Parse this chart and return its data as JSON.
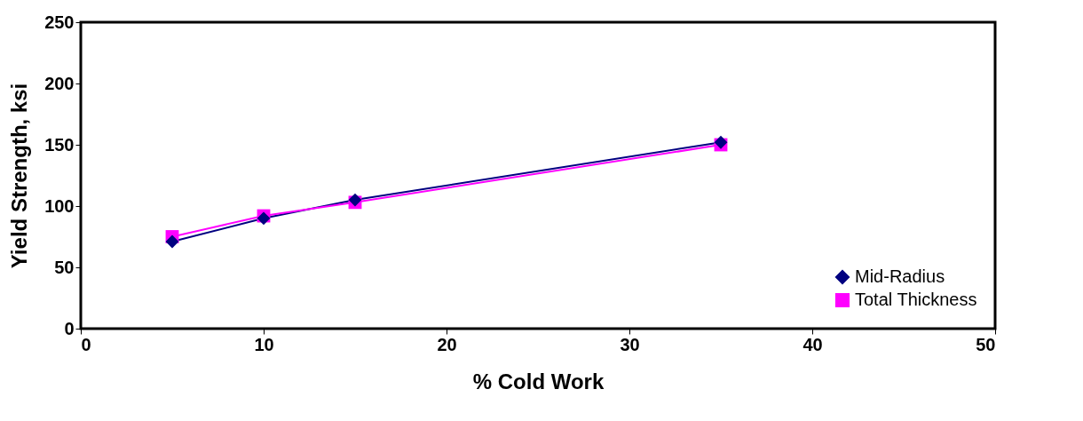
{
  "chart_data": {
    "type": "line",
    "xlabel": "% Cold Work",
    "ylabel": "Yield Strength, ksi",
    "x": [
      5,
      10,
      15,
      35
    ],
    "series": [
      {
        "name": "Mid-Radius",
        "color": "#000080",
        "marker": "diamond",
        "values": [
          71,
          90,
          105,
          152
        ]
      },
      {
        "name": "Total Thickness",
        "color": "#ff00ff",
        "marker": "square",
        "values": [
          75,
          92,
          103,
          150
        ]
      }
    ],
    "xlim": [
      0,
      50
    ],
    "xticks": [
      0,
      10,
      20,
      30,
      40,
      50
    ],
    "ylim": [
      0,
      250
    ],
    "yticks": [
      0,
      50,
      100,
      150,
      200,
      250
    ],
    "grid": false,
    "legend": "bottom right",
    "line_style": "solid"
  }
}
